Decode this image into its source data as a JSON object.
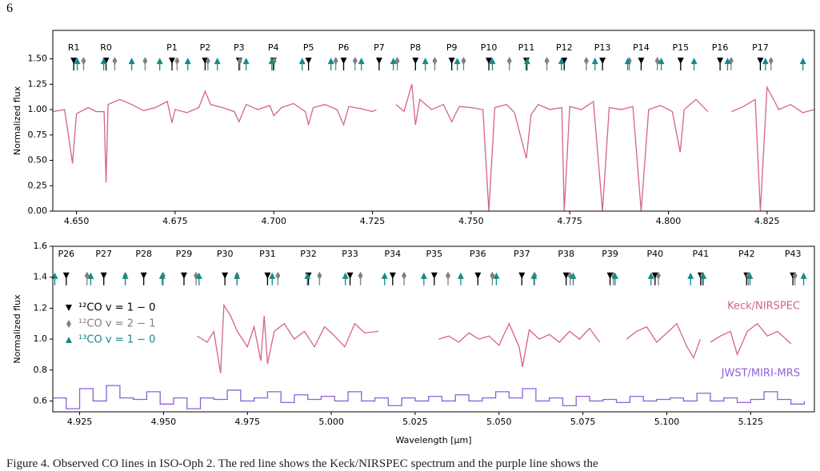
{
  "page_number": "6",
  "caption": "Figure 4. Observed CO lines in ISO-Oph 2. The red line shows the Keck/NIRSPEC spectrum and the purple line shows the",
  "chart_data": [
    {
      "type": "line",
      "ylabel": "Normalized flux",
      "xlim": [
        4.644,
        4.837
      ],
      "ylim": [
        0,
        1.78
      ],
      "xticks": [
        {
          "value": 4.65,
          "label": "4.650"
        },
        4.675,
        {
          "value": 4.7,
          "label": "4.700"
        },
        4.725,
        {
          "value": 4.75,
          "label": "4.750"
        },
        4.775,
        {
          "value": 4.8,
          "label": "4.800"
        },
        4.825
      ],
      "yticks": [
        {
          "value": 0,
          "label": "0.00"
        },
        0.25,
        {
          "value": 0.5,
          "label": "0.50"
        },
        0.75,
        {
          "value": 1,
          "label": "1.00"
        },
        1.25,
        {
          "value": 1.5,
          "label": "1.50"
        }
      ],
      "series": [
        {
          "color": "#d6638a",
          "style": "line",
          "x": [
            4.644,
            4.647,
            4.649,
            4.65,
            4.653,
            4.655,
            4.657,
            4.6575,
            4.658,
            4.661,
            4.664,
            4.667,
            4.67,
            4.673,
            4.6742,
            4.675,
            4.678,
            4.681,
            4.6826,
            4.684,
            4.687,
            4.69,
            4.6912,
            4.693,
            4.696,
            4.699,
            4.7,
            4.702,
            4.705,
            4.708,
            4.7088,
            4.71,
            4.713,
            4.716,
            4.7177,
            4.719,
            4.722,
            4.725,
            4.726,
            4.728,
            4.731,
            4.733,
            4.735,
            4.7359,
            4.737,
            4.74,
            4.743,
            4.7451,
            4.747,
            4.75,
            4.753,
            4.7545,
            4.756,
            4.759,
            4.761,
            4.764,
            4.7652,
            4.767,
            4.77,
            4.773,
            4.7736,
            4.775,
            4.778,
            4.781,
            4.7833,
            4.785,
            4.788,
            4.791,
            4.7931,
            4.795,
            4.798,
            4.801,
            4.803,
            4.804,
            4.807,
            4.81,
            4.812,
            4.816,
            4.819,
            4.822,
            4.8233,
            4.825,
            4.828,
            4.831,
            4.834,
            4.837
          ],
          "values": [
            0.98,
            1.0,
            0.47,
            0.96,
            1.02,
            0.98,
            0.98,
            0.28,
            1.05,
            1.1,
            1.05,
            0.99,
            1.02,
            1.08,
            0.87,
            1.0,
            0.97,
            1.02,
            1.18,
            1.05,
            1.02,
            0.98,
            0.88,
            1.05,
            1.0,
            1.04,
            0.94,
            1.02,
            1.06,
            0.98,
            0.85,
            1.02,
            1.05,
            1.0,
            0.85,
            1.03,
            1.01,
            0.98,
            1.0,
            null,
            1.05,
            0.98,
            1.25,
            0.85,
            1.1,
            1.0,
            1.05,
            0.88,
            1.03,
            1.02,
            1.0,
            0.0,
            1.02,
            1.05,
            0.97,
            0.52,
            0.95,
            1.05,
            1.0,
            1.02,
            0.0,
            1.03,
            1.0,
            1.08,
            0.0,
            1.02,
            1.0,
            1.03,
            0.0,
            1.0,
            1.04,
            0.98,
            0.58,
            1.0,
            1.1,
            0.98,
            null,
            0.98,
            1.03,
            1.1,
            0.0,
            1.22,
            1.0,
            1.05,
            0.97,
            1.0
          ]
        }
      ],
      "line_markers": {
        "y": 1.48,
        "series": [
          {
            "color": "#000000",
            "symbol": "v",
            "x": [
              4.6493,
              4.6575,
              4.6742,
              4.6826,
              4.6912,
              4.6999,
              4.7088,
              4.7177,
              4.7267,
              4.7359,
              4.7451,
              4.7545,
              4.764,
              4.7736,
              4.7833,
              4.7931,
              4.8031,
              4.8131,
              4.8233
            ]
          },
          {
            "color": "#808080",
            "symbol": "d",
            "x": [
              4.6518,
              4.6597,
              4.6674,
              4.6755,
              4.6833,
              4.6914,
              4.7001,
              4.7157,
              4.7206,
              4.7313,
              4.7408,
              4.7481,
              4.7597,
              4.7692,
              4.7792,
              4.7901,
              4.7972,
              4.8159,
              4.826
            ]
          },
          {
            "color": "#138a8a",
            "symbol": "^",
            "x": [
              4.6502,
              4.6569,
              4.664,
              4.6711,
              4.6782,
              4.6857,
              4.693,
              4.6995,
              4.7072,
              4.7145,
              4.7222,
              4.7303,
              4.7384,
              4.7465,
              4.7554,
              4.7642,
              4.7729,
              4.7814,
              4.7897,
              4.7982,
              4.8065,
              4.815,
              4.8246,
              4.8341
            ]
          }
        ]
      },
      "line_labels": [
        "R1",
        "R0",
        "P1",
        "P2",
        "P3",
        "P4",
        "P5",
        "P6",
        "P7",
        "P8",
        "P9",
        "P10",
        "P11",
        "P12",
        "P13",
        "P14",
        "P15",
        "P16",
        "P17"
      ]
    },
    {
      "type": "line",
      "ylabel": "Normalized flux",
      "xlabel": "Wavelength [μm]",
      "legend": "upper left",
      "xlim": [
        4.917,
        5.144
      ],
      "ylim": [
        0.53,
        1.6
      ],
      "xticks": [
        4.925,
        {
          "value": 4.95,
          "label": "4.950"
        },
        4.975,
        {
          "value": 5,
          "label": "5.000"
        },
        5.025,
        {
          "value": 5.05,
          "label": "5.050"
        },
        5.075,
        {
          "value": 5.1,
          "label": "5.100"
        },
        5.125
      ],
      "yticks": [
        0.6,
        0.8,
        {
          "value": 1,
          "label": "1.0"
        },
        1.2,
        1.4,
        1.6
      ],
      "series": [
        {
          "name": "Keck/NIRSPEC",
          "color": "#d6638a",
          "style": "line",
          "x": [
            4.96,
            4.963,
            4.965,
            4.967,
            4.968,
            4.97,
            4.972,
            4.975,
            4.977,
            4.979,
            4.98,
            4.981,
            4.983,
            4.986,
            4.989,
            4.992,
            4.995,
            4.998,
            5.001,
            5.004,
            5.007,
            5.01,
            5.014,
            5.02,
            5.032,
            5.035,
            5.038,
            5.041,
            5.044,
            5.047,
            5.05,
            5.053,
            5.056,
            5.057,
            5.059,
            5.062,
            5.065,
            5.068,
            5.071,
            5.074,
            5.077,
            5.08,
            5.085,
            5.088,
            5.091,
            5.094,
            5.097,
            5.1,
            5.103,
            5.106,
            5.108,
            5.11,
            5.112,
            5.113,
            5.116,
            5.119,
            5.121,
            5.124,
            5.127,
            5.13,
            5.133,
            5.137
          ],
          "values": [
            1.02,
            0.98,
            1.05,
            0.78,
            1.22,
            1.15,
            1.05,
            0.95,
            1.08,
            0.86,
            1.15,
            0.84,
            1.05,
            1.1,
            1.0,
            1.05,
            0.95,
            1.08,
            1.02,
            0.95,
            1.1,
            1.04,
            1.05,
            null,
            1.0,
            1.02,
            0.98,
            1.04,
            1.0,
            1.02,
            0.96,
            1.1,
            0.95,
            0.82,
            1.06,
            1.0,
            1.03,
            0.98,
            1.05,
            1.0,
            1.07,
            0.98,
            null,
            1.0,
            1.05,
            1.08,
            0.98,
            1.04,
            1.1,
            0.95,
            0.88,
            1.0,
            null,
            0.98,
            1.02,
            1.05,
            0.9,
            1.05,
            1.1,
            1.02,
            1.05,
            0.97
          ]
        },
        {
          "name": "JWST/MIRI-MRS",
          "color": "#8c62d9",
          "style": "step",
          "x": [
            4.917,
            4.921,
            4.925,
            4.929,
            4.933,
            4.937,
            4.941,
            4.945,
            4.949,
            4.953,
            4.957,
            4.961,
            4.965,
            4.969,
            4.973,
            4.977,
            4.981,
            4.985,
            4.989,
            4.993,
            4.997,
            5.001,
            5.005,
            5.009,
            5.013,
            5.017,
            5.021,
            5.025,
            5.029,
            5.033,
            5.037,
            5.041,
            5.045,
            5.049,
            5.053,
            5.057,
            5.061,
            5.065,
            5.069,
            5.073,
            5.077,
            5.081,
            5.085,
            5.089,
            5.093,
            5.097,
            5.101,
            5.105,
            5.109,
            5.113,
            5.117,
            5.121,
            5.125,
            5.129,
            5.133,
            5.137,
            5.141
          ],
          "values": [
            0.62,
            0.55,
            0.68,
            0.6,
            0.7,
            0.62,
            0.61,
            0.66,
            0.58,
            0.62,
            0.55,
            0.62,
            0.61,
            0.67,
            0.6,
            0.62,
            0.66,
            0.59,
            0.64,
            0.61,
            0.63,
            0.6,
            0.66,
            0.6,
            0.62,
            0.57,
            0.62,
            0.6,
            0.63,
            0.6,
            0.64,
            0.6,
            0.62,
            0.66,
            0.62,
            0.68,
            0.6,
            0.62,
            0.57,
            0.63,
            0.6,
            0.61,
            0.59,
            0.63,
            0.6,
            0.61,
            0.62,
            0.6,
            0.65,
            0.6,
            0.62,
            0.59,
            0.61,
            0.66,
            0.61,
            0.58,
            0.6
          ]
        }
      ],
      "line_markers": {
        "y": 1.41,
        "series": [
          {
            "name": "¹²CO v = 1 − 0",
            "color": "#000000",
            "symbol": "v",
            "x": [
              4.921,
              4.9322,
              4.9441,
              4.9561,
              4.9683,
              4.981,
              4.9932,
              5.0056,
              5.0183,
              5.0307,
              5.0437,
              5.0568,
              5.07,
              5.0831,
              5.0965,
              5.1101,
              5.1238,
              5.1376
            ]
          },
          {
            "name": "¹²CO v = 2 − 1",
            "color": "#808080",
            "symbol": "d",
            "x": [
              4.9272,
              4.9386,
              4.9499,
              4.9597,
              4.9719,
              4.9841,
              4.9965,
              5.0087,
              5.0217,
              5.0348,
              5.048,
              5.0606,
              5.0712,
              5.0841,
              5.0975,
              5.1106,
              5.1243,
              5.1382
            ]
          },
          {
            "name": "¹³CO v = 1 − 0",
            "color": "#138a8a",
            "symbol": "^",
            "x": [
              4.9176,
              4.9283,
              4.9386,
              4.9496,
              4.9606,
              4.9719,
              4.9824,
              4.9929,
              5.0042,
              5.0159,
              5.0276,
              5.0386,
              5.0492,
              5.0604,
              5.0721,
              5.0846,
              5.0953,
              5.1071,
              5.1109,
              5.1248,
              5.1408
            ]
          }
        ]
      },
      "line_labels": [
        "P26",
        "P27",
        "P28",
        "P29",
        "P30",
        "P31",
        "P32",
        "P33",
        "P34",
        "P35",
        "P36",
        "P37",
        "P38",
        "P39",
        "P40",
        "P41",
        "P42",
        "P43"
      ]
    }
  ]
}
